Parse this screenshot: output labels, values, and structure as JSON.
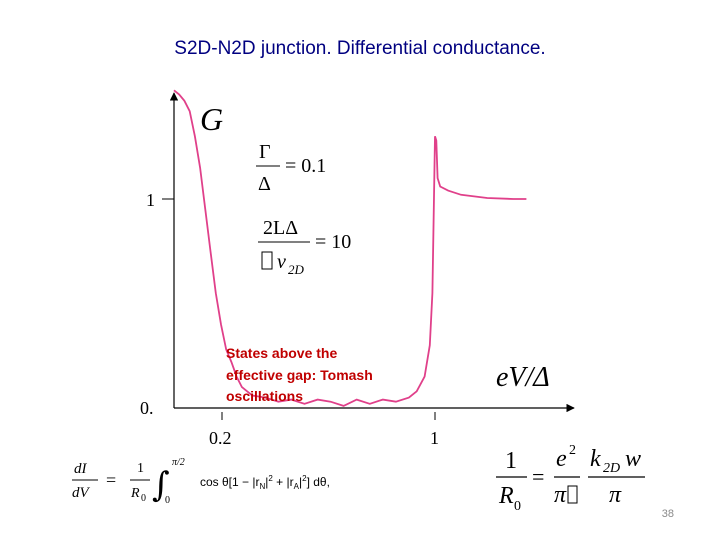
{
  "slide": {
    "title": "S2D-N2D junction. Differential conductance.",
    "number": "38"
  },
  "chart_data": {
    "type": "line",
    "ylabel": "G",
    "xlabel": "eV/Δ",
    "x_ticks": [
      "0.2",
      "1"
    ],
    "x_tick_values": [
      0.2,
      1
    ],
    "y_ticks": [
      "0.",
      "1"
    ],
    "y_tick_values": [
      0,
      1
    ],
    "xlim": [
      0,
      1.5
    ],
    "ylim": [
      0,
      1.6
    ],
    "grid": false,
    "annotation": "States above the effective gap: Tomash oscillations",
    "annotation_color": "#c00000",
    "line_color": "#e0408a",
    "series": [
      {
        "x": [
          0.0,
          0.02,
          0.04,
          0.06,
          0.08,
          0.1,
          0.12,
          0.14,
          0.16,
          0.18,
          0.2,
          0.22,
          0.24,
          0.26,
          0.28,
          0.3,
          0.35,
          0.4,
          0.45,
          0.5,
          0.55,
          0.6,
          0.65,
          0.7,
          0.75,
          0.8,
          0.85,
          0.9,
          0.93,
          0.96,
          0.98,
          0.99,
          1.0,
          1.005,
          1.01,
          1.02,
          1.05,
          1.1,
          1.2,
          1.3,
          1.35
        ],
        "y": [
          1.52,
          1.5,
          1.47,
          1.42,
          1.3,
          1.15,
          0.95,
          0.75,
          0.55,
          0.4,
          0.28,
          0.22,
          0.15,
          0.1,
          0.08,
          0.06,
          0.05,
          0.03,
          0.04,
          0.02,
          0.04,
          0.03,
          0.01,
          0.04,
          0.02,
          0.04,
          0.03,
          0.05,
          0.08,
          0.15,
          0.3,
          0.55,
          1.3,
          1.28,
          1.1,
          1.06,
          1.04,
          1.02,
          1.005,
          1.0,
          1.0
        ]
      }
    ]
  },
  "legend_formulas": {
    "gamma_num": "Γ",
    "gamma_den": "Δ",
    "gamma_val": "= 0.1",
    "length_num": "2LΔ",
    "length_den": "v",
    "length_den_sub": "2D",
    "length_val": "= 10"
  },
  "conductance_formula": {
    "lhs_num": "dI",
    "lhs_den": "dV",
    "eq": "=",
    "coef_num": "1",
    "coef_den": "R",
    "coef_den_sub": "0",
    "upper": "π/2",
    "lower": "0",
    "integrand": "cos θ[1 − |r",
    "integrand_rn_sub": "N",
    "integrand_mid": "|",
    "integrand_rn_sup": "2",
    "integrand_plus": " + |r",
    "integrand_ra_sub": "A",
    "integrand_end": "|",
    "integrand_ra_sup": "2",
    "integrand_tail": "] dθ,"
  },
  "resistance_formula": {
    "lhs_num": "1",
    "lhs_den": "R",
    "lhs_den_sub": "0",
    "eq": "=",
    "e2": "e",
    "e2_sup": "2",
    "pi": "π",
    "k": "k",
    "k_sub": "2D",
    "w": "w"
  }
}
